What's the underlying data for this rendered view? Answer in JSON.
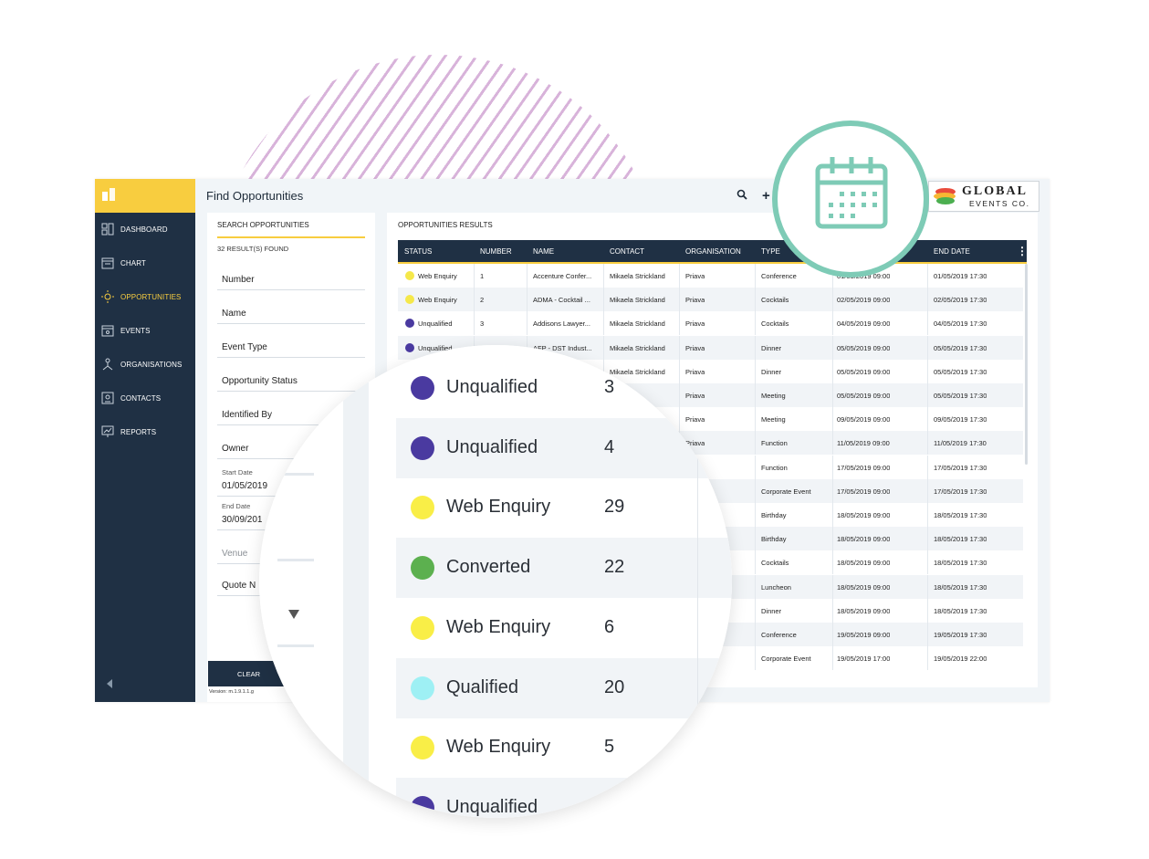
{
  "app": {
    "header_title": "Find Opportunities",
    "nav": [
      {
        "label": "DASHBOARD",
        "icon": "dashboard-icon",
        "active": false
      },
      {
        "label": "CHART",
        "icon": "calendar-chart-icon",
        "active": false
      },
      {
        "label": "OPPORTUNITIES",
        "icon": "opportunities-icon",
        "active": true
      },
      {
        "label": "EVENTS",
        "icon": "events-icon",
        "active": false
      },
      {
        "label": "ORGANISATIONS",
        "icon": "organisations-icon",
        "active": false
      },
      {
        "label": "CONTACTS",
        "icon": "contacts-icon",
        "active": false
      },
      {
        "label": "REPORTS",
        "icon": "reports-icon",
        "active": false
      }
    ],
    "accent_color": "#f8cd3f",
    "sidebar_color": "#1f3044"
  },
  "search": {
    "title": "SEARCH OPPORTUNITIES",
    "result_count": "32 RESULT(S) FOUND",
    "fields": [
      "Number",
      "Name",
      "Event Type",
      "Opportunity Status",
      "Identified By",
      "Owner"
    ],
    "start_date_label": "Start Date",
    "start_date_value": "01/05/2019",
    "end_date_label": "End Date",
    "end_date_value": "30/09/201",
    "venue_placeholder": "Venue",
    "quote_label": "Quote N",
    "clear_label": "CLEAR",
    "version": "Version: m.1.9.1.1.g"
  },
  "results": {
    "title": "OPPORTUNITIES RESULTS",
    "columns": [
      "STATUS",
      "NUMBER",
      "NAME",
      "CONTACT",
      "ORGANISATION",
      "TYPE",
      "END DATE"
    ],
    "rows": [
      {
        "status": "Web Enquiry",
        "color": "#f5e84a",
        "number": "1",
        "name": "Accenture Confer...",
        "contact": "Mikaela Strickland",
        "org": "Priava",
        "type": "Conference",
        "start": "01/05/2019 09:00",
        "end": "01/05/2019 17:30"
      },
      {
        "status": "Web Enquiry",
        "color": "#f5e84a",
        "number": "2",
        "name": "ADMA - Cocktail ...",
        "contact": "Mikaela Strickland",
        "org": "Priava",
        "type": "Cocktails",
        "start": "02/05/2019 09:00",
        "end": "02/05/2019 17:30"
      },
      {
        "status": "Unqualified",
        "color": "#4a3aa0",
        "number": "3",
        "name": "Addisons Lawyer...",
        "contact": "Mikaela Strickland",
        "org": "Priava",
        "type": "Cocktails",
        "start": "04/05/2019 09:00",
        "end": "04/05/2019 17:30"
      },
      {
        "status": "Unqualified",
        "color": "#4a3aa0",
        "number": "4",
        "name": "AFP - DST Indust...",
        "contact": "Mikaela Strickland",
        "org": "Priava",
        "type": "Dinner",
        "start": "05/05/2019 09:00",
        "end": "05/05/2019 17:30"
      },
      {
        "status": "",
        "color": "",
        "number": "",
        "name": "",
        "contact": "Mikaela Strickland",
        "org": "Priava",
        "type": "Dinner",
        "start": "05/05/2019 09:00",
        "end": "05/05/2019 17:30"
      },
      {
        "status": "",
        "color": "",
        "number": "",
        "name": "",
        "contact": "strickland",
        "org": "Priava",
        "type": "Meeting",
        "start": "05/05/2019 09:00",
        "end": "05/05/2019 17:30"
      },
      {
        "status": "",
        "color": "",
        "number": "",
        "name": "",
        "contact": "strickland",
        "org": "Priava",
        "type": "Meeting",
        "start": "09/05/2019 09:00",
        "end": "09/05/2019 17:30"
      },
      {
        "status": "",
        "color": "",
        "number": "",
        "name": "",
        "contact": "strickland",
        "org": "Priava",
        "type": "Function",
        "start": "11/05/2019 09:00",
        "end": "11/05/2019 17:30"
      },
      {
        "status": "",
        "color": "",
        "number": "",
        "name": "",
        "contact": "",
        "org": "iava",
        "type": "Function",
        "start": "17/05/2019 09:00",
        "end": "17/05/2019 17:30"
      },
      {
        "status": "",
        "color": "",
        "number": "",
        "name": "",
        "contact": "",
        "org": "",
        "type": "Corporate Event",
        "start": "17/05/2019 09:00",
        "end": "17/05/2019 17:30"
      },
      {
        "status": "",
        "color": "",
        "number": "",
        "name": "",
        "contact": "",
        "org": "",
        "type": "Birthday",
        "start": "18/05/2019 09:00",
        "end": "18/05/2019 17:30"
      },
      {
        "status": "",
        "color": "",
        "number": "",
        "name": "",
        "contact": "",
        "org": "",
        "type": "Birthday",
        "start": "18/05/2019 09:00",
        "end": "18/05/2019 17:30"
      },
      {
        "status": "",
        "color": "",
        "number": "",
        "name": "",
        "contact": "",
        "org": "",
        "type": "Cocktails",
        "start": "18/05/2019 09:00",
        "end": "18/05/2019 17:30"
      },
      {
        "status": "",
        "color": "",
        "number": "",
        "name": "",
        "contact": "",
        "org": "",
        "type": "Luncheon",
        "start": "18/05/2019 09:00",
        "end": "18/05/2019 17:30"
      },
      {
        "status": "",
        "color": "",
        "number": "",
        "name": "",
        "contact": "",
        "org": "",
        "type": "Dinner",
        "start": "18/05/2019 09:00",
        "end": "18/05/2019 17:30"
      },
      {
        "status": "",
        "color": "",
        "number": "",
        "name": "",
        "contact": "",
        "org": "",
        "type": "Conference",
        "start": "19/05/2019 09:00",
        "end": "19/05/2019 17:30"
      },
      {
        "status": "",
        "color": "",
        "number": "",
        "name": "",
        "contact": "",
        "org": "",
        "type": "Corporate Event",
        "start": "19/05/2019 17:00",
        "end": "19/05/2019 22:00"
      }
    ]
  },
  "brand": {
    "line1": "GLOBAL",
    "line2": "EVENTS CO."
  },
  "magnified": [
    {
      "status": "Unqualified",
      "color": "#4a3aa0",
      "number": "3"
    },
    {
      "status": "Unqualified",
      "color": "#4a3aa0",
      "number": "4"
    },
    {
      "status": "Web Enquiry",
      "color": "#f9ee47",
      "number": "29"
    },
    {
      "status": "Converted",
      "color": "#5cb04f",
      "number": "22"
    },
    {
      "status": "Web Enquiry",
      "color": "#f9ee47",
      "number": "6"
    },
    {
      "status": "Qualified",
      "color": "#9ef0f4",
      "number": "20"
    },
    {
      "status": "Web Enquiry",
      "color": "#f9ee47",
      "number": "5"
    },
    {
      "status": "Unqualified",
      "color": "#4a3aa0",
      "number": ""
    }
  ]
}
